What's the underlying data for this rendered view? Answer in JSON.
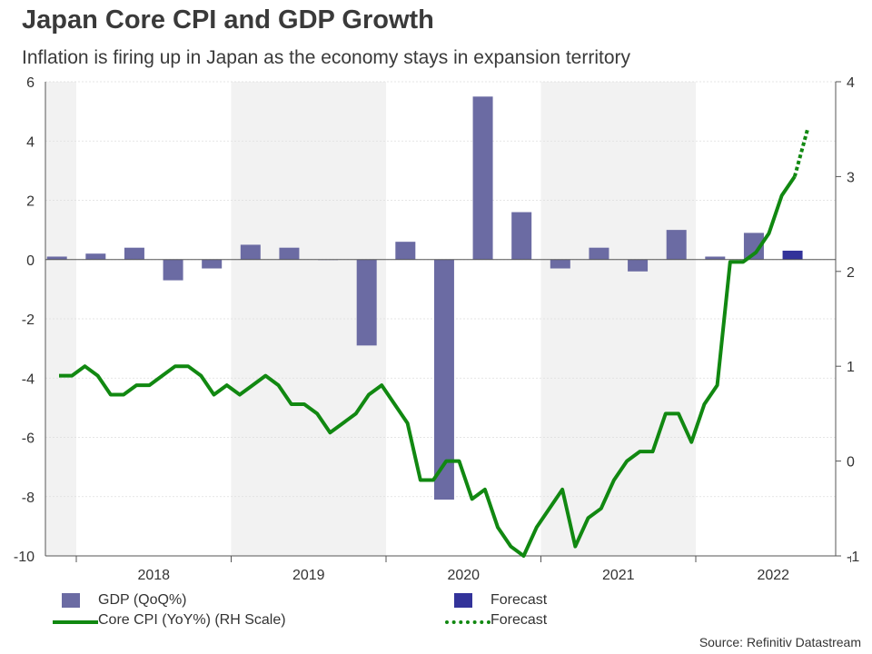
{
  "title": "Japan Core CPI and GDP Growth",
  "subtitle": "Inflation is firing up in Japan as the economy stays in expansion territory",
  "source": "Source: Refinitiv Datastream",
  "legend": {
    "gdp": "GDP (QoQ%)",
    "gdp_forecast": "Forecast",
    "cpi": "Core CPI (YoY%) (RH Scale)",
    "cpi_forecast": "Forecast"
  },
  "colors": {
    "gdp": "#6b6ba3",
    "gdp_forecast": "#33339a",
    "cpi": "#118811",
    "shade": "#f2f2f2"
  },
  "chart_data": {
    "type": "bar+line",
    "years": [
      "2018",
      "2019",
      "2020",
      "2021",
      "2022"
    ],
    "left_axis": {
      "range": [
        -10,
        6
      ],
      "ticks": [
        6,
        4,
        2,
        0,
        -2,
        -4,
        -6,
        -8,
        -10
      ]
    },
    "right_axis": {
      "range": [
        -1,
        4
      ],
      "ticks": [
        4,
        3,
        2,
        1,
        0,
        -1
      ]
    },
    "gdp_quarters": [
      "2017-Q4",
      "2018-Q1",
      "2018-Q2",
      "2018-Q3",
      "2018-Q4",
      "2019-Q1",
      "2019-Q2",
      "2019-Q3",
      "2019-Q4",
      "2020-Q1",
      "2020-Q2",
      "2020-Q3",
      "2020-Q4",
      "2021-Q1",
      "2021-Q2",
      "2021-Q3",
      "2021-Q4",
      "2022-Q1",
      "2022-Q2",
      "2022-Q3"
    ],
    "series": [
      {
        "name": "GDP (QoQ%)",
        "values": [
          0.1,
          0.2,
          0.4,
          -0.7,
          -0.3,
          0.5,
          0.4,
          0.0,
          -2.9,
          0.6,
          -8.1,
          5.5,
          1.6,
          -0.3,
          0.4,
          -0.4,
          1.0,
          0.1,
          0.9,
          0.3
        ],
        "forecast_from_index": 19
      },
      {
        "name": "Core CPI (YoY%) (RH Scale)",
        "axis": "right",
        "values": [
          0.9,
          0.9,
          1.0,
          0.9,
          0.7,
          0.7,
          0.8,
          0.8,
          0.9,
          1.0,
          1.0,
          0.9,
          0.7,
          0.8,
          0.7,
          0.8,
          0.9,
          0.8,
          0.6,
          0.6,
          0.5,
          0.3,
          0.4,
          0.5,
          0.7,
          0.8,
          0.6,
          0.4,
          -0.2,
          -0.2,
          0.0,
          0.0,
          -0.4,
          -0.3,
          -0.7,
          -0.9,
          -1.0,
          -0.7,
          -0.5,
          -0.3,
          -0.9,
          -0.6,
          -0.5,
          -0.2,
          0.0,
          0.1,
          0.1,
          0.5,
          0.5,
          0.2,
          0.6,
          0.8,
          2.1,
          2.1,
          2.2,
          2.4,
          2.8,
          3.0,
          3.5
        ],
        "forecast_from_index": 57
      }
    ]
  }
}
